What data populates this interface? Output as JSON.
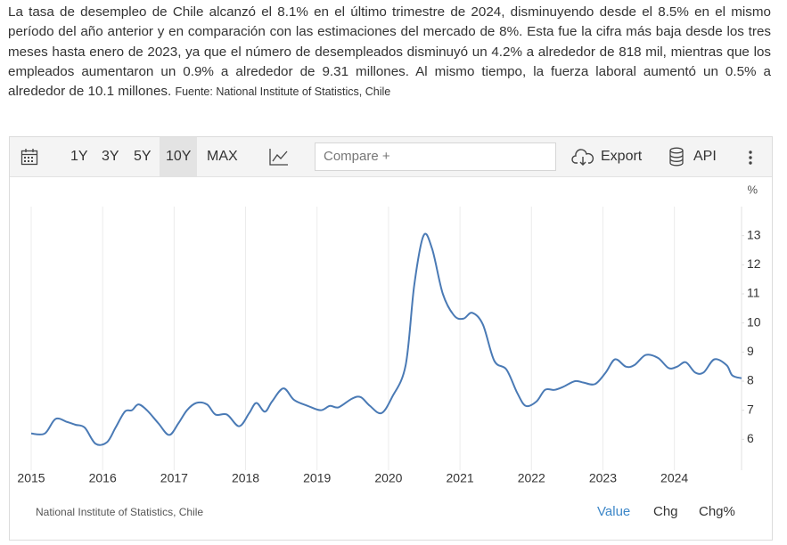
{
  "text": {
    "paragraph": "La tasa de desempleo de Chile alcanzó el 8.1% en el último trimestre de 2024, disminuyendo desde el 8.5% en el mismo período del año anterior y en comparación con las estimaciones del mercado de 8%. Esta fue la cifra más baja desde los tres meses hasta enero de 2023, ya que el número de desempleados disminuyó un 4.2% a alrededor de 818 mil, mientras que los empleados aumentaron un 0.9% a alrededor de 9.31 millones. Al mismo tiempo, la fuerza laboral aumentó un 0.5% a alrededor de 10.1 millones.",
    "source": "Fuente: National Institute of Statistics, Chile"
  },
  "toolbar": {
    "ranges": [
      "1Y",
      "3Y",
      "5Y",
      "10Y",
      "MAX"
    ],
    "compare": "Compare +",
    "export": "Export",
    "api": "API"
  },
  "chart_data": {
    "type": "line",
    "unit": "%",
    "color": "#4a7ab5",
    "x": [
      2015.0,
      2015.19,
      2015.34,
      2015.5,
      2015.62,
      2015.75,
      2015.9,
      2016.06,
      2016.18,
      2016.31,
      2016.41,
      2016.5,
      2016.62,
      2016.78,
      2016.93,
      2017.06,
      2017.18,
      2017.31,
      2017.46,
      2017.58,
      2017.74,
      2017.91,
      2018.05,
      2018.15,
      2018.27,
      2018.37,
      2018.53,
      2018.68,
      2018.87,
      2019.05,
      2019.18,
      2019.3,
      2019.49,
      2019.61,
      2019.74,
      2019.9,
      2020.05,
      2020.24,
      2020.36,
      2020.49,
      2020.61,
      2020.76,
      2020.92,
      2021.05,
      2021.17,
      2021.32,
      2021.48,
      2021.65,
      2021.8,
      2021.92,
      2022.07,
      2022.19,
      2022.32,
      2022.44,
      2022.61,
      2022.73,
      2022.89,
      2023.04,
      2023.17,
      2023.32,
      2023.44,
      2023.6,
      2023.77,
      2023.92,
      2024.04,
      2024.16,
      2024.29,
      2024.41,
      2024.56,
      2024.73,
      2024.81,
      2024.94
    ],
    "values": [
      6.2,
      6.2,
      6.7,
      6.6,
      6.5,
      6.4,
      5.85,
      5.9,
      6.4,
      6.95,
      7.0,
      7.2,
      7.0,
      6.55,
      6.15,
      6.55,
      7.0,
      7.25,
      7.2,
      6.85,
      6.85,
      6.45,
      6.9,
      7.25,
      6.95,
      7.3,
      7.75,
      7.35,
      7.15,
      7.0,
      7.15,
      7.1,
      7.4,
      7.45,
      7.15,
      6.9,
      7.45,
      8.55,
      11.3,
      13.0,
      12.55,
      11.0,
      10.25,
      10.15,
      10.35,
      9.95,
      8.7,
      8.4,
      7.6,
      7.15,
      7.3,
      7.7,
      7.7,
      7.8,
      8.0,
      7.95,
      7.9,
      8.3,
      8.75,
      8.5,
      8.55,
      8.9,
      8.8,
      8.45,
      8.5,
      8.65,
      8.3,
      8.3,
      8.75,
      8.55,
      8.2,
      8.1
    ],
    "xlim": [
      2015,
      2024.94
    ],
    "xticks": [
      2015,
      2016,
      2017,
      2018,
      2019,
      2020,
      2021,
      2022,
      2023,
      2024
    ],
    "ylim": [
      5,
      14
    ],
    "yticks": [
      6,
      7,
      8,
      9,
      10,
      11,
      12,
      13
    ],
    "grid": true
  },
  "footer": {
    "source": "National Institute of Statistics, Chile",
    "tabs": [
      "Value",
      "Chg",
      "Chg%"
    ]
  }
}
